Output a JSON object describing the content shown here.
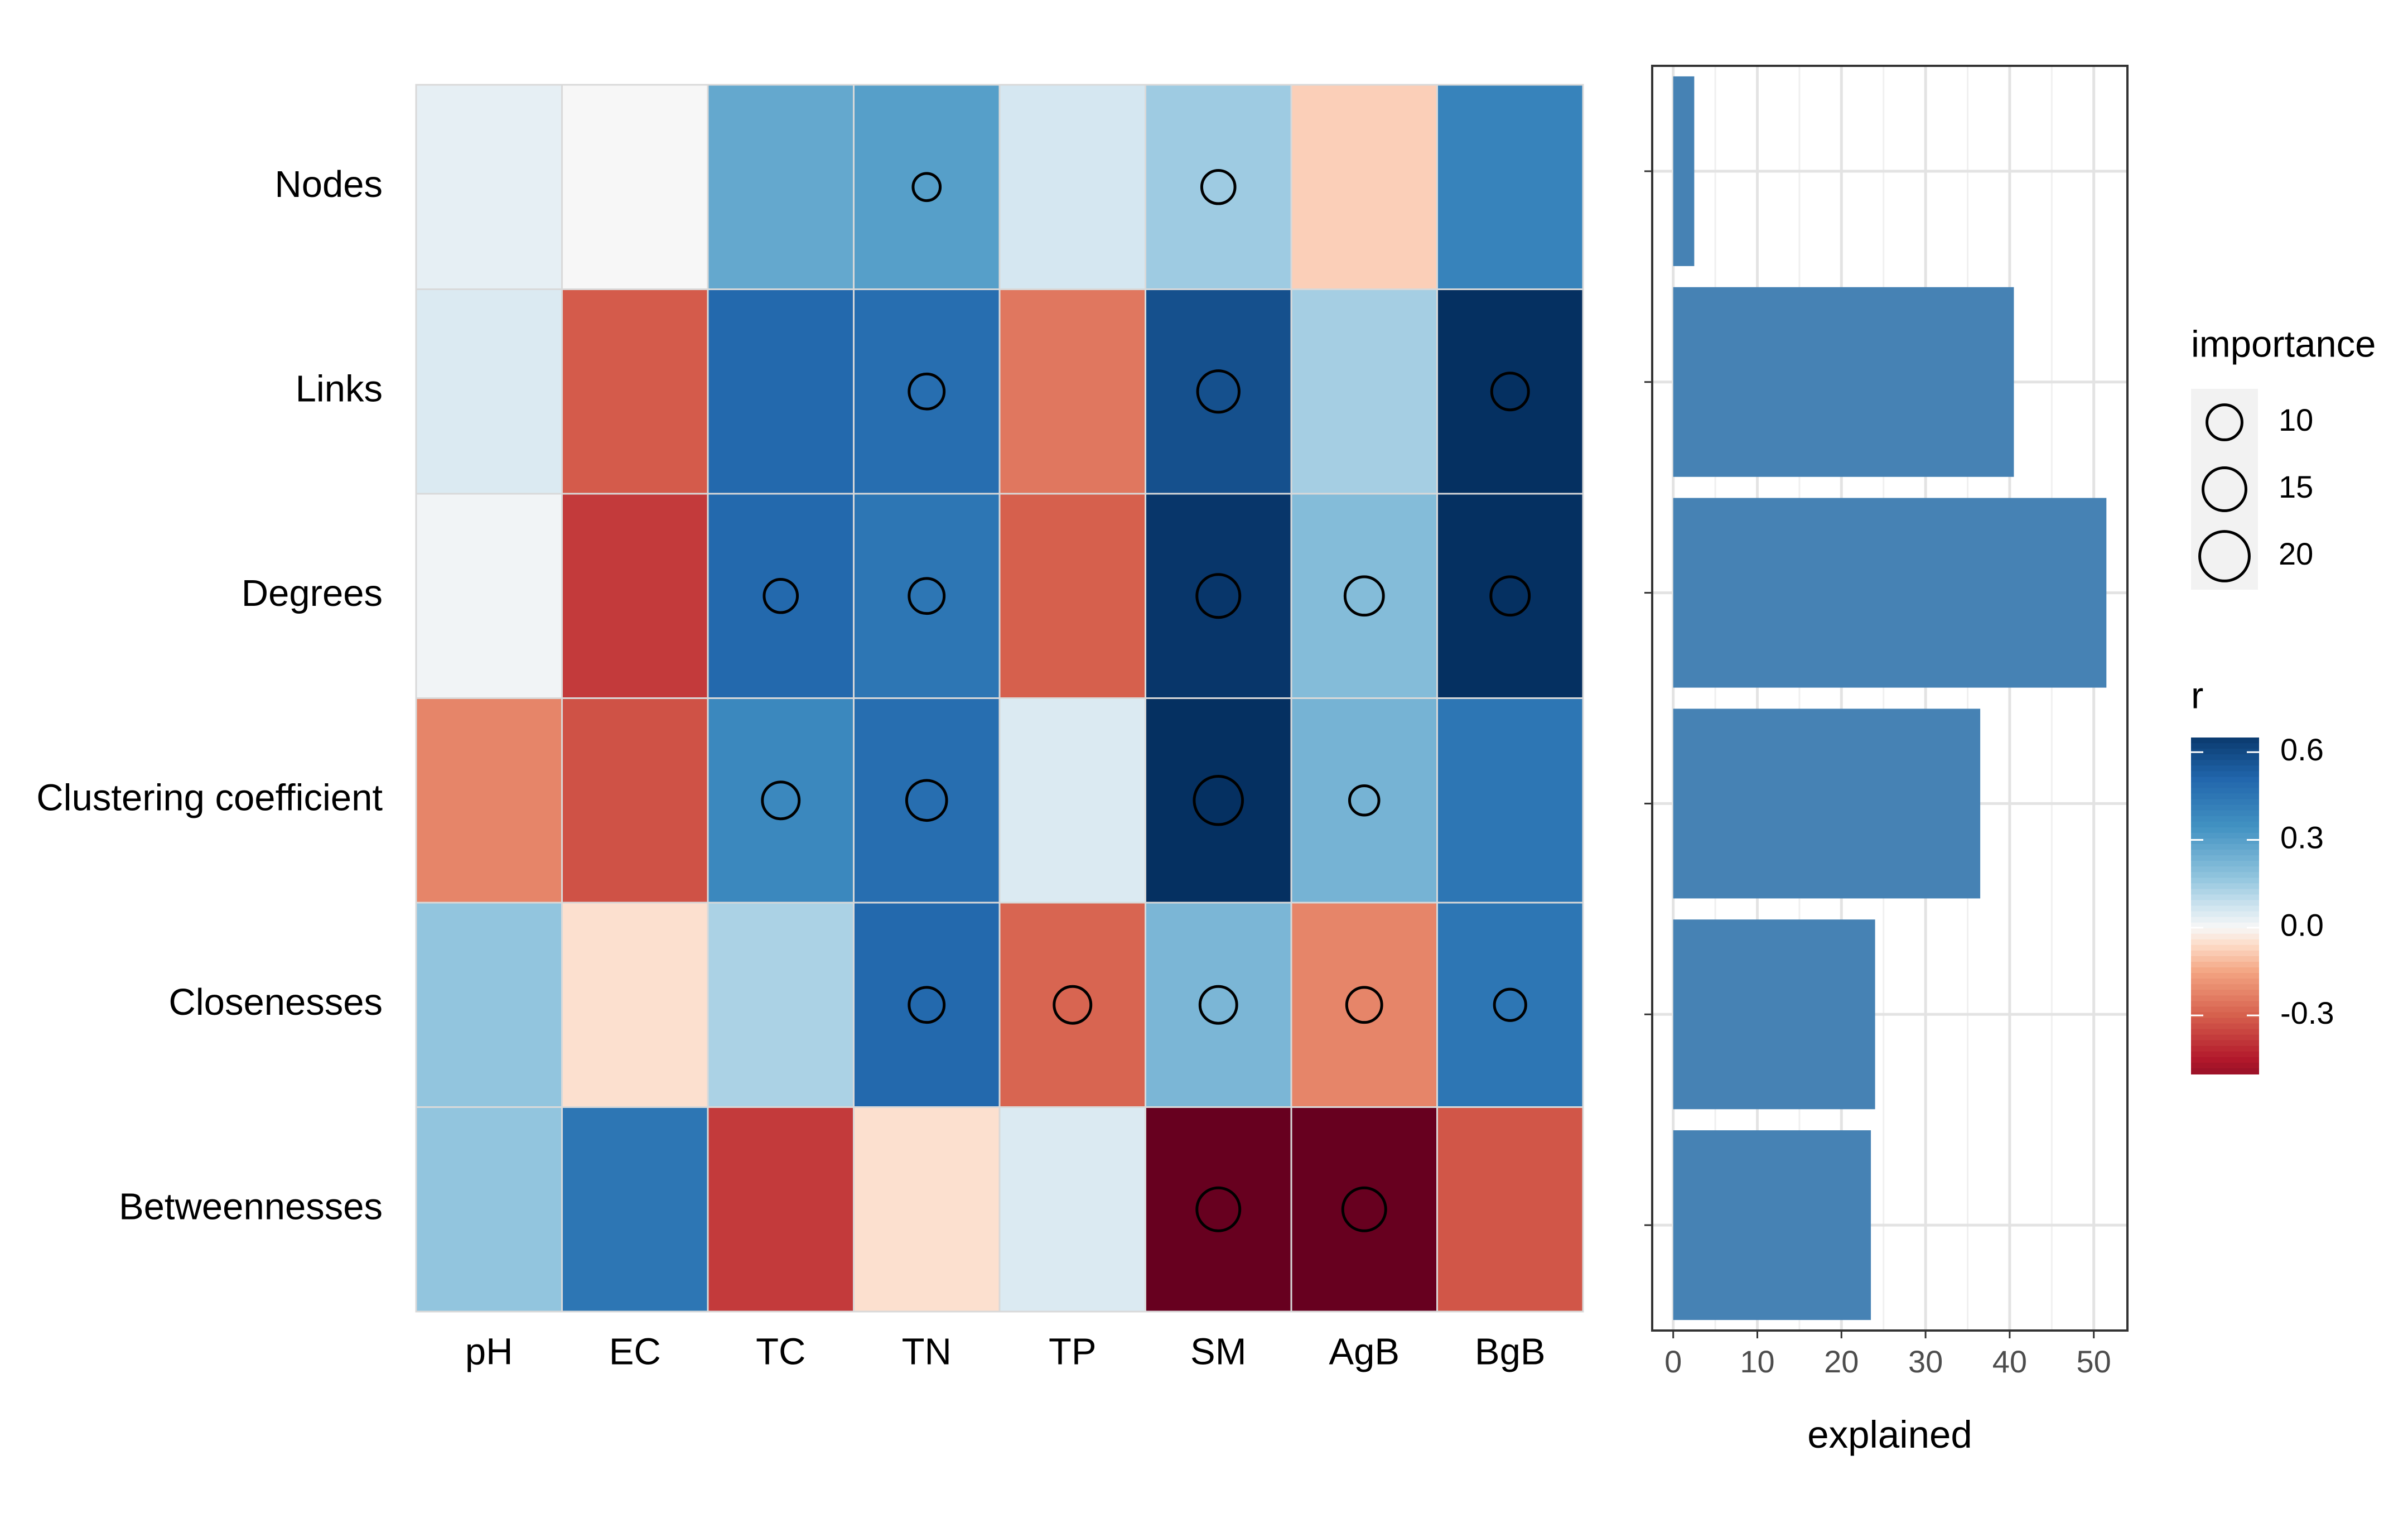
{
  "chart_data": [
    {
      "type": "heatmap",
      "title": "",
      "rows": [
        "Nodes",
        "Links",
        "Degrees",
        "Clustering coefficient",
        "Closenesses",
        "Betweennesses"
      ],
      "columns": [
        "pH",
        "EC",
        "TC",
        "TN",
        "TP",
        "SM",
        "AgB",
        "BgB"
      ],
      "r": [
        [
          0.03,
          0.0,
          0.27,
          0.3,
          0.06,
          0.15,
          -0.08,
          0.4
        ],
        [
          0.05,
          -0.31,
          0.5,
          0.48,
          -0.25,
          0.58,
          0.14,
          0.68
        ],
        [
          0.01,
          -0.38,
          0.5,
          0.45,
          -0.3,
          0.66,
          0.2,
          0.68
        ],
        [
          -0.22,
          -0.33,
          0.38,
          0.48,
          0.05,
          0.7,
          0.23,
          0.45
        ],
        [
          0.17,
          -0.05,
          0.13,
          0.5,
          -0.29,
          0.22,
          -0.22,
          0.45
        ],
        [
          0.17,
          0.45,
          -0.38,
          -0.05,
          0.05,
          -0.6,
          -0.6,
          -0.32
        ]
      ],
      "importance": [
        [
          null,
          null,
          null,
          6,
          null,
          9,
          null,
          null
        ],
        [
          null,
          null,
          null,
          10,
          null,
          14,
          null,
          11
        ],
        [
          null,
          null,
          9,
          10,
          null,
          15,
          12,
          12
        ],
        [
          null,
          null,
          11,
          13,
          null,
          19,
          7,
          null
        ],
        [
          null,
          null,
          null,
          10,
          11,
          11,
          10,
          8
        ],
        [
          null,
          null,
          null,
          null,
          null,
          15,
          15,
          null
        ]
      ],
      "legend_size": {
        "title": "importance",
        "values": [
          10,
          15,
          20
        ],
        "labels": [
          "10",
          "15",
          "20"
        ]
      },
      "legend_color": {
        "title": "r",
        "min": -0.5,
        "max": 0.65,
        "ticks": [
          0.6,
          0.3,
          0.0,
          -0.3
        ],
        "tick_labels": [
          "0.6",
          "0.3",
          "0.0",
          "-0.3"
        ]
      }
    },
    {
      "type": "bar",
      "orientation": "horizontal",
      "categories": [
        "Nodes",
        "Links",
        "Degrees",
        "Clustering coefficient",
        "Closenesses",
        "Betweennesses"
      ],
      "values": [
        2.5,
        40.5,
        51.5,
        36.5,
        24,
        23.5
      ],
      "xlabel": "explained",
      "ylabel": "",
      "xlim": [
        -2.5,
        54
      ],
      "xticks": [
        0,
        10,
        20,
        30,
        40,
        50
      ],
      "xtick_labels": [
        "0",
        "10",
        "20",
        "30",
        "40",
        "50"
      ],
      "color": "#4682B4",
      "grid": true
    }
  ]
}
